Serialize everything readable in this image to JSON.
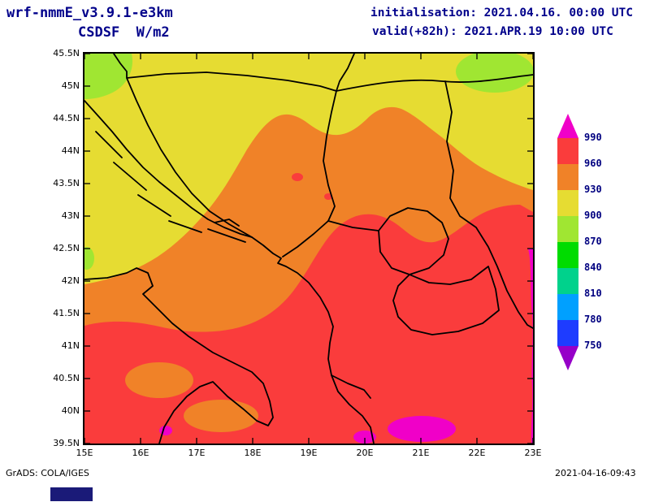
{
  "header": {
    "model": "wrf-nmmE_v3.9.1-e3km",
    "variable": "CSDSF  W/m2",
    "init_label": "initialisation: 2021.04.16. 00:00 UTC",
    "valid_label": "valid(+82h): 2021.APR.19 10:00 UTC"
  },
  "map": {
    "lat_ticks": [
      "45.5N",
      "45N",
      "44.5N",
      "44N",
      "43.5N",
      "43N",
      "42.5N",
      "42N",
      "41.5N",
      "41N",
      "40.5N",
      "40N",
      "39.5N"
    ],
    "lon_ticks": [
      "15E",
      "16E",
      "17E",
      "18E",
      "19E",
      "20E",
      "21E",
      "22E",
      "23E"
    ]
  },
  "colorbar": {
    "labels": [
      "990",
      "960",
      "930",
      "900",
      "870",
      "840",
      "810",
      "780",
      "750"
    ],
    "bands_top_to_bottom": [
      "#fa3c3c",
      "#f08228",
      "#e6dc32",
      "#a0e632",
      "#00dc00",
      "#00d28c",
      "#00a0ff",
      "#1e3cff"
    ],
    "arrow_top_color": "#f000c8",
    "arrow_bottom_color": "#9600c8",
    "label_color": "#000080"
  },
  "map_colors": {
    "yellow": "#e6dc32",
    "yellow_green": "#a0e632",
    "orange": "#f08228",
    "red": "#fa3c3c",
    "magenta": "#f000c8",
    "border": "#000000"
  },
  "colors": {
    "header_text": "#00008b",
    "axis_text": "#000000",
    "artifact_box": "#1a1a78"
  },
  "footer": {
    "left": "GrADS: COLA/IGES",
    "right": "2021-04-16-09:43"
  }
}
